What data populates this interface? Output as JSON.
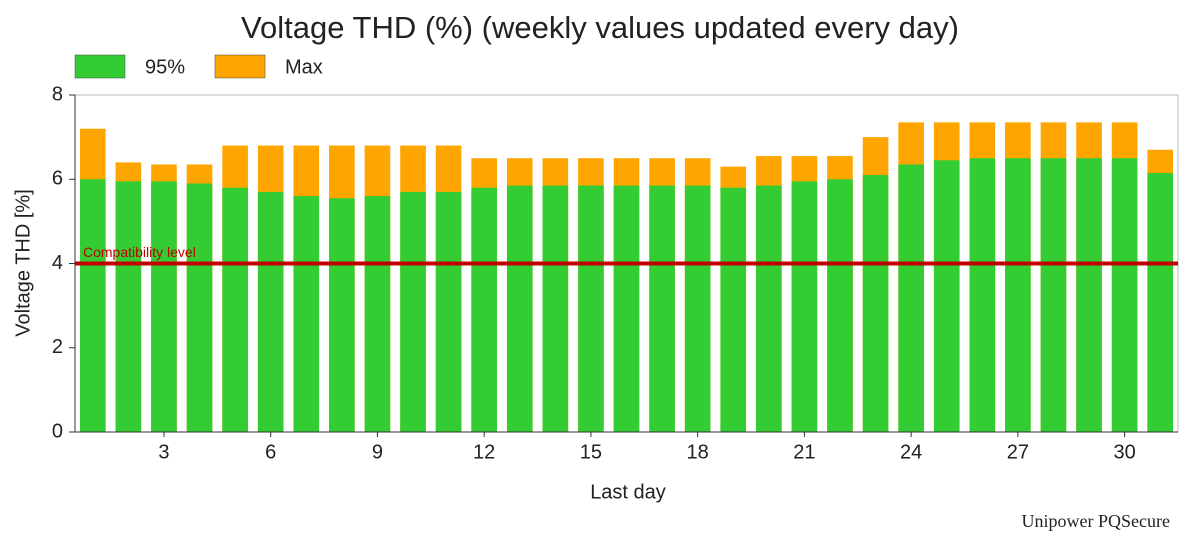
{
  "chart_data": {
    "type": "bar",
    "title": "Voltage THD (%) (weekly values updated every day)",
    "x_label": "Last day",
    "y_label": "Voltage THD [%]",
    "footer": "Unipower PQSecure",
    "x": [
      1,
      2,
      3,
      4,
      5,
      6,
      7,
      8,
      9,
      10,
      11,
      12,
      13,
      14,
      15,
      16,
      17,
      18,
      19,
      20,
      21,
      22,
      23,
      24,
      25,
      26,
      27,
      28,
      29,
      30,
      31
    ],
    "series": [
      {
        "name": "Max",
        "color": "#ffa500",
        "values": [
          7.2,
          6.4,
          6.35,
          6.35,
          6.8,
          6.8,
          6.8,
          6.8,
          6.8,
          6.8,
          6.8,
          6.5,
          6.5,
          6.5,
          6.5,
          6.5,
          6.5,
          6.5,
          6.3,
          6.55,
          6.55,
          6.55,
          7.0,
          7.35,
          7.35,
          7.35,
          7.35,
          7.35,
          7.35,
          7.35,
          6.7
        ]
      },
      {
        "name": "95%",
        "color": "#33cc33",
        "values": [
          6.0,
          5.95,
          5.95,
          5.9,
          5.8,
          5.7,
          5.6,
          5.55,
          5.6,
          5.7,
          5.7,
          5.8,
          5.85,
          5.85,
          5.85,
          5.85,
          5.85,
          5.85,
          5.8,
          5.85,
          5.95,
          6.0,
          6.1,
          6.35,
          6.45,
          6.5,
          6.5,
          6.5,
          6.5,
          6.5,
          6.15
        ]
      }
    ],
    "legend_order": [
      "95%",
      "Max"
    ],
    "reference_line": {
      "value": 4,
      "label": "Compatibility level",
      "color": "#c00000"
    },
    "xlim": [
      0.5,
      31.5
    ],
    "xticks": [
      3,
      6,
      9,
      12,
      15,
      18,
      21,
      24,
      27,
      30
    ],
    "ylim": [
      0,
      8
    ],
    "yticks": [
      0,
      2,
      4,
      6,
      8
    ],
    "grid": false
  }
}
